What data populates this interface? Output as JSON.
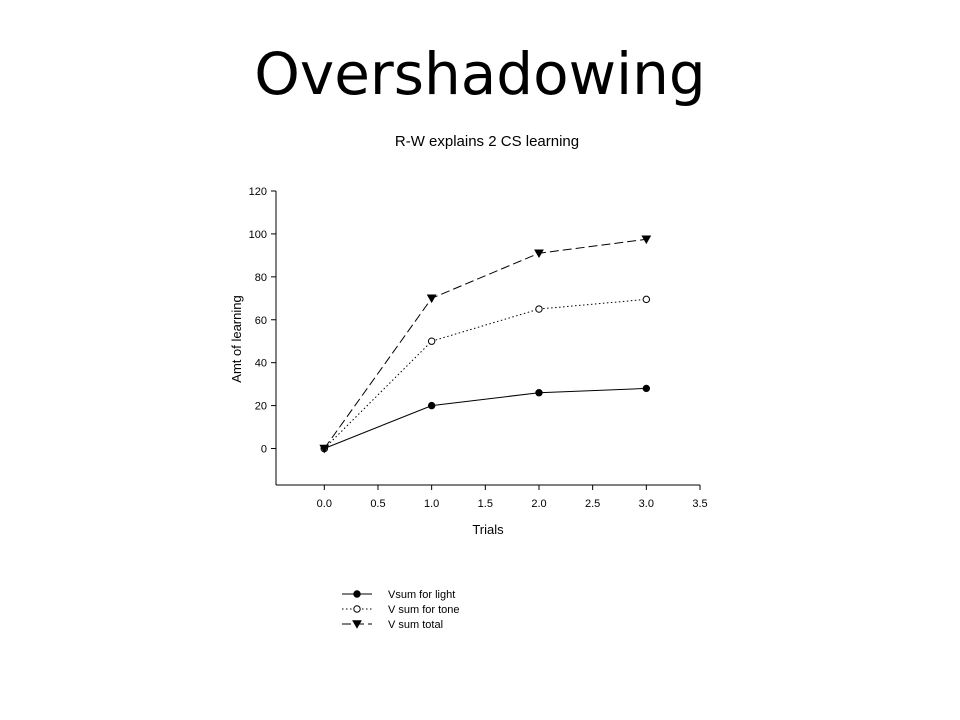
{
  "slide": {
    "title": "Overshadowing"
  },
  "chart_data": {
    "type": "line",
    "title": "R-W explains 2 CS learning",
    "xlabel": "Trials",
    "ylabel": "Amt of learning",
    "xlim": [
      -0.45,
      3.5
    ],
    "ylim": [
      -17,
      120
    ],
    "x_ticks": [
      0.0,
      0.5,
      1.0,
      1.5,
      2.0,
      2.5,
      3.0,
      3.5
    ],
    "x_tick_labels": [
      "0.0",
      "0.5",
      "1.0",
      "1.5",
      "2.0",
      "2.5",
      "3.0",
      "3.5"
    ],
    "y_ticks": [
      0,
      20,
      40,
      60,
      80,
      100,
      120
    ],
    "y_tick_labels": [
      "0",
      "20",
      "40",
      "60",
      "80",
      "100",
      "120"
    ],
    "x": [
      0,
      1,
      2,
      3
    ],
    "legend_position": "bottom",
    "series": [
      {
        "name": "Vsum for  light",
        "values": [
          0,
          20,
          26,
          28
        ],
        "marker": "filled-circle",
        "line": "solid",
        "color": "#000000"
      },
      {
        "name": "V sum for tone",
        "values": [
          0,
          50,
          65,
          69.5
        ],
        "marker": "open-circle",
        "line": "dotted",
        "color": "#000000"
      },
      {
        "name": "V sum total",
        "values": [
          0,
          70,
          91,
          97.5
        ],
        "marker": "filled-triangle-down",
        "line": "dashed",
        "color": "#000000"
      }
    ]
  }
}
